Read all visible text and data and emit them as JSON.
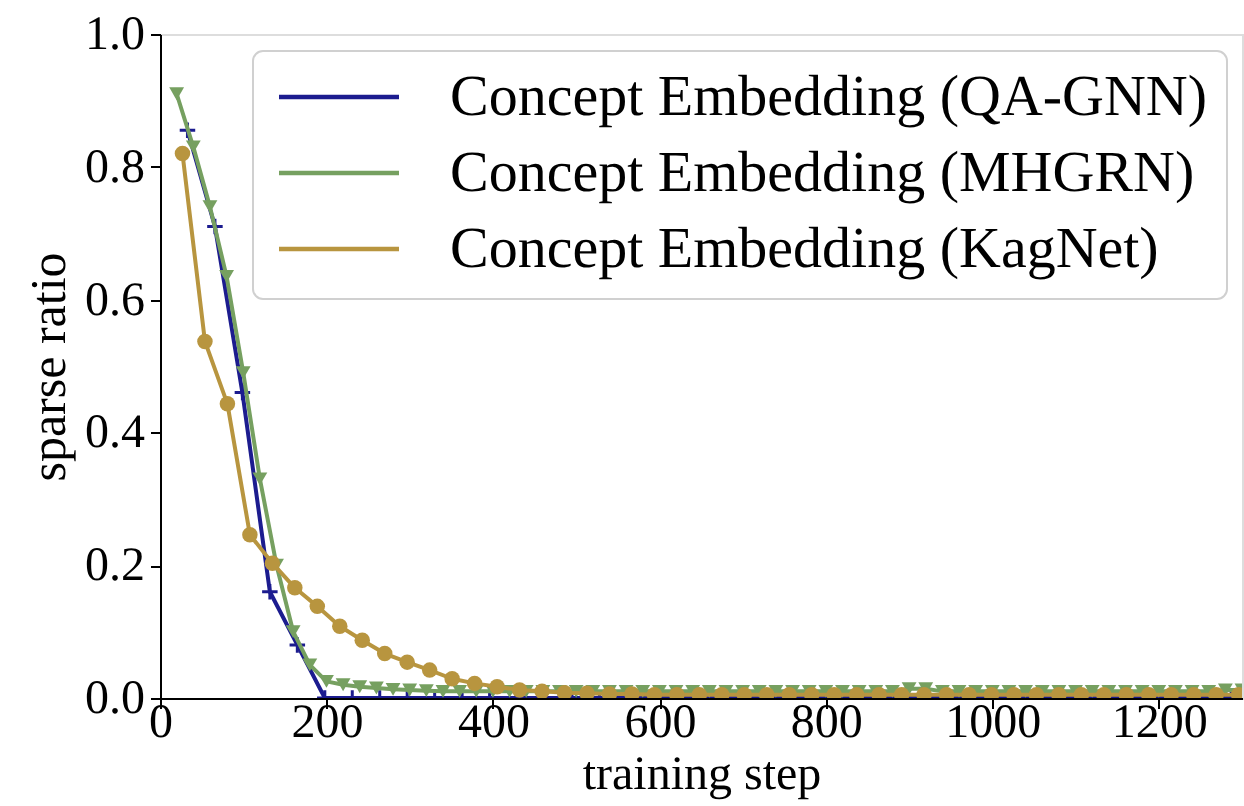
{
  "chart_data": {
    "type": "line",
    "xlabel": "training step",
    "ylabel": "sparse ratio",
    "xlim": [
      0,
      1300
    ],
    "ylim": [
      0,
      1
    ],
    "xticks": [
      0,
      200,
      400,
      600,
      800,
      1000,
      1200
    ],
    "yticks": [
      {
        "value": 0,
        "label": "0.0"
      },
      0.2,
      0.4,
      0.6,
      0.8,
      {
        "value": 1,
        "label": "1.0"
      }
    ],
    "legend": "top right",
    "line_style": "solid",
    "series": [
      {
        "name": "Concept Embedding (QA-GNN)",
        "color": "#1c1c8f",
        "marker": "cross",
        "x": [
          33,
          66,
          99,
          132,
          165,
          198,
          231,
          264,
          297,
          330,
          363,
          396,
          429,
          462,
          495,
          528,
          561,
          594,
          627,
          660,
          693,
          726,
          759,
          792,
          825,
          858,
          891,
          924,
          957,
          990,
          1023,
          1056,
          1089,
          1122,
          1155,
          1188,
          1221,
          1254,
          1287
        ],
        "values": [
          0.855,
          0.71,
          0.46,
          0.16,
          0.08,
          0.0,
          0.0,
          0.0,
          0.0,
          0.0,
          0.0,
          0.0,
          0.0,
          0.0,
          0.0,
          0.0,
          0.0,
          0.0,
          0.0,
          0.0,
          0.0,
          0.0,
          0.0,
          0.0,
          0.0,
          0.0,
          0.0,
          0.0,
          0.0,
          0.0,
          0.0,
          0.0,
          0.0,
          0.0,
          0.0,
          0.0,
          0.0,
          0.0,
          0.0
        ]
      },
      {
        "name": "Concept Embedding (MHGRN)",
        "color": "#76a060",
        "marker": "triangle",
        "x": [
          20,
          40,
          60,
          80,
          100,
          120,
          140,
          160,
          180,
          200,
          220,
          240,
          260,
          280,
          300,
          320,
          340,
          360,
          380,
          400,
          420,
          440,
          460,
          480,
          500,
          520,
          540,
          560,
          580,
          600,
          620,
          640,
          660,
          680,
          700,
          720,
          740,
          760,
          780,
          800,
          820,
          840,
          860,
          880,
          900,
          920,
          940,
          960,
          980,
          1000,
          1020,
          1040,
          1060,
          1080,
          1100,
          1120,
          1140,
          1160,
          1180,
          1200,
          1220,
          1240,
          1260,
          1280,
          1300
        ],
        "values": [
          0.91,
          0.83,
          0.74,
          0.635,
          0.49,
          0.33,
          0.2,
          0.1,
          0.05,
          0.025,
          0.02,
          0.017,
          0.015,
          0.013,
          0.012,
          0.011,
          0.01,
          0.01,
          0.01,
          0.01,
          0.01,
          0.01,
          0.01,
          0.01,
          0.01,
          0.01,
          0.01,
          0.01,
          0.01,
          0.01,
          0.01,
          0.01,
          0.01,
          0.01,
          0.01,
          0.01,
          0.01,
          0.01,
          0.01,
          0.01,
          0.01,
          0.01,
          0.01,
          0.01,
          0.014,
          0.014,
          0.01,
          0.01,
          0.01,
          0.01,
          0.01,
          0.01,
          0.01,
          0.01,
          0.01,
          0.01,
          0.01,
          0.01,
          0.01,
          0.01,
          0.01,
          0.01,
          0.01,
          0.012,
          0.012
        ]
      },
      {
        "name": "Concept Embedding (KagNet)",
        "color": "#b8953f",
        "marker": "circle",
        "x": [
          27,
          54,
          81,
          108,
          135,
          162,
          189,
          216,
          243,
          270,
          297,
          324,
          351,
          378,
          405,
          432,
          459,
          486,
          513,
          540,
          567,
          594,
          621,
          648,
          675,
          702,
          729,
          756,
          783,
          810,
          837,
          864,
          891,
          918,
          945,
          972,
          999,
          1026,
          1053,
          1080,
          1107,
          1134,
          1161,
          1188,
          1215,
          1242,
          1269,
          1296
        ],
        "values": [
          0.82,
          0.537,
          0.443,
          0.246,
          0.203,
          0.166,
          0.138,
          0.108,
          0.087,
          0.067,
          0.054,
          0.042,
          0.029,
          0.022,
          0.017,
          0.012,
          0.01,
          0.008,
          0.007,
          0.006,
          0.006,
          0.005,
          0.005,
          0.005,
          0.005,
          0.005,
          0.005,
          0.005,
          0.005,
          0.005,
          0.005,
          0.005,
          0.005,
          0.005,
          0.005,
          0.005,
          0.005,
          0.005,
          0.005,
          0.005,
          0.005,
          0.005,
          0.005,
          0.005,
          0.005,
          0.005,
          0.005,
          0.005
        ]
      }
    ]
  }
}
